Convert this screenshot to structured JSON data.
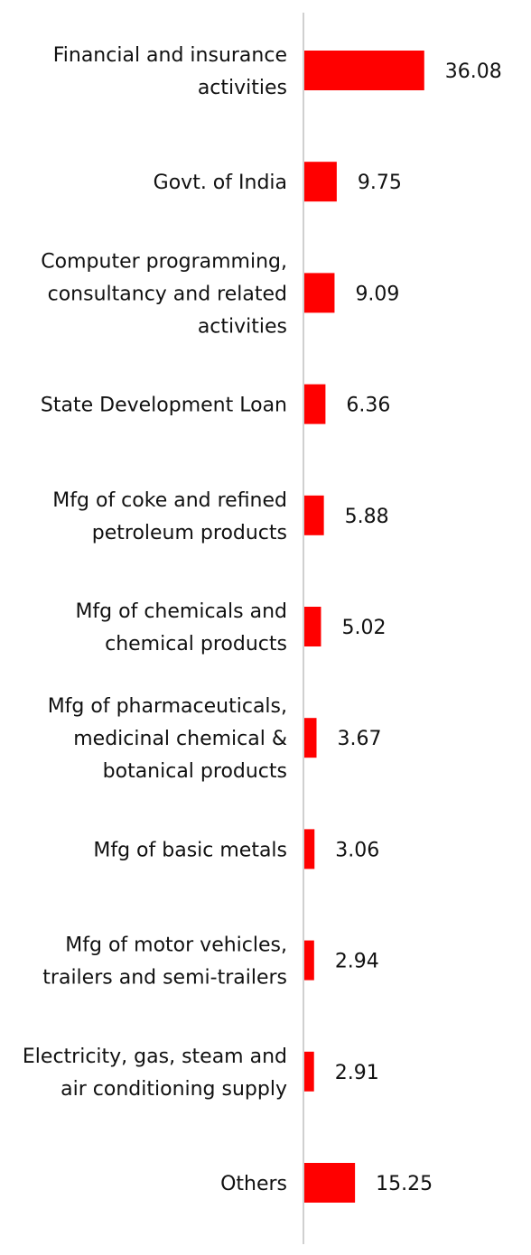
{
  "chart_data": {
    "type": "bar",
    "orientation": "horizontal",
    "categories": [
      [
        "Financial and insurance",
        "activities"
      ],
      [
        "Govt. of India"
      ],
      [
        "Computer programming,",
        "consultancy and related",
        "activities"
      ],
      [
        "State Development Loan"
      ],
      [
        "Mfg of coke and refined",
        "petroleum products"
      ],
      [
        "Mfg of chemicals and",
        "chemical products"
      ],
      [
        "Mfg of pharmaceuticals,",
        "medicinal chemical &",
        "botanical products"
      ],
      [
        "Mfg of basic metals"
      ],
      [
        "Mfg of motor vehicles,",
        "trailers and semi-trailers"
      ],
      [
        "Electricity, gas, steam and",
        "air conditioning supply"
      ],
      [
        "Others"
      ]
    ],
    "values": [
      36.08,
      9.75,
      9.09,
      6.36,
      5.88,
      5.02,
      3.67,
      3.06,
      2.94,
      2.91,
      15.25
    ],
    "value_labels": [
      "36.08",
      "9.75",
      "9.09",
      "6.36",
      "5.88",
      "5.02",
      "3.67",
      "3.06",
      "2.94",
      "2.91",
      "15.25"
    ],
    "bar_color": "#ff0000",
    "axis_color": "#d0d0d0",
    "grid": false,
    "legend": "none"
  }
}
